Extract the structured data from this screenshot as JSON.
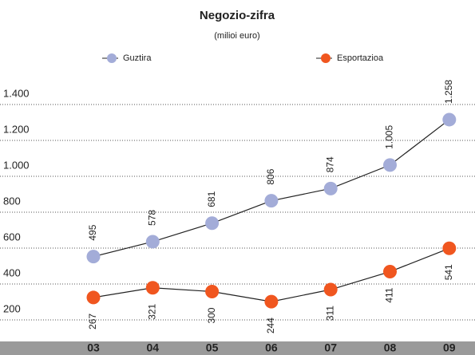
{
  "chart_data": {
    "type": "line",
    "title": "Negozio-zifra",
    "subtitle": "(milioi euro)",
    "categories": [
      "03",
      "04",
      "05",
      "06",
      "07",
      "08",
      "09"
    ],
    "series": [
      {
        "name": "Guztira",
        "color": "#a3acd8",
        "values": [
          495,
          578,
          681,
          806,
          874,
          1005,
          1258
        ],
        "value_labels": [
          "495",
          "578",
          "681",
          "806",
          "874",
          "1.005",
          "1.258"
        ]
      },
      {
        "name": "Esportazioa",
        "color": "#f0561f",
        "values": [
          267,
          321,
          300,
          244,
          311,
          411,
          541
        ]
      }
    ],
    "ylim": [
      100,
      1500
    ],
    "yticks": [
      200,
      400,
      600,
      800,
      {
        "value": 1000,
        "label": "1.000"
      },
      {
        "value": 1200,
        "label": "1.200"
      },
      {
        "value": 1400,
        "label": "1.400"
      }
    ],
    "grid": true
  }
}
